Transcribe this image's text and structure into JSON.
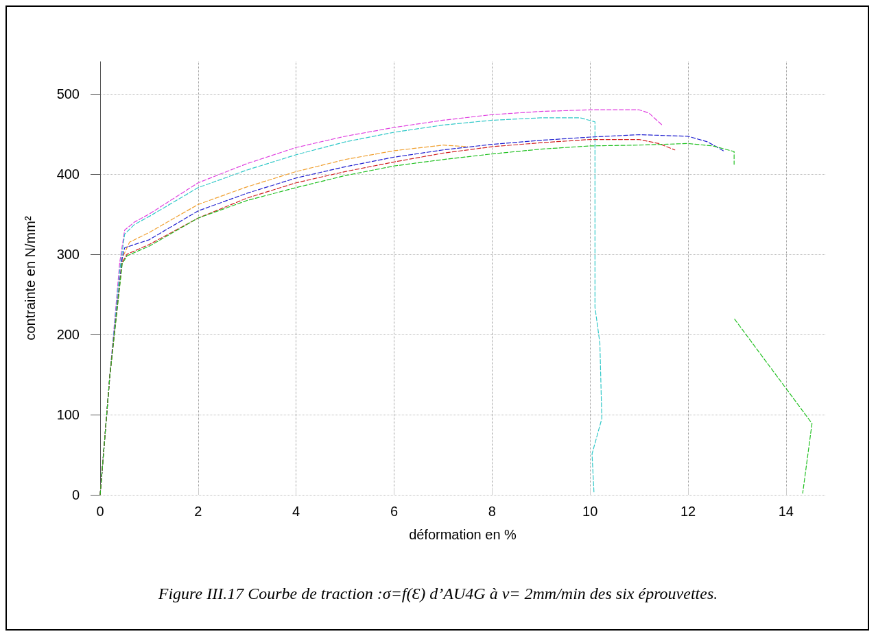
{
  "chart_data": {
    "type": "line",
    "title": "Figure III.17 Courbe de traction :σ=f(Ɛ) d’AU4G à ν= 2mm/min des six éprouvettes.",
    "xlabel": "déformation en %",
    "ylabel": "contrainte en N/mm²",
    "xlim": [
      0,
      14.8
    ],
    "xticks": [
      0,
      2,
      4,
      6,
      8,
      10,
      12,
      14
    ],
    "ylim": [
      0,
      540
    ],
    "yticks": [
      0,
      100,
      200,
      300,
      400,
      500
    ],
    "grid": true,
    "marker": "none",
    "line_style": "dashed",
    "series": [
      {
        "color": "#e040e0",
        "x": [
          0,
          0.2,
          0.4,
          0.5,
          0.7,
          1,
          2,
          3,
          4,
          5,
          6,
          7,
          8,
          9,
          10,
          11,
          11.2,
          11.47
        ],
        "values": [
          0,
          150,
          290,
          330,
          340,
          350,
          389,
          413,
          433,
          447,
          458,
          467,
          474,
          478,
          480,
          480,
          476,
          461
        ]
      },
      {
        "color": "#30c8c8",
        "x": [
          0,
          0.2,
          0.4,
          0.5,
          0.7,
          1,
          2,
          3,
          4,
          5,
          6,
          7,
          8,
          9,
          9.8,
          10.1,
          10.1,
          10.2,
          10.24,
          10.04,
          10.08
        ],
        "values": [
          0,
          150,
          280,
          325,
          337,
          347,
          383,
          405,
          424,
          440,
          452,
          461,
          467,
          470,
          470,
          465,
          234,
          189,
          95,
          51,
          2
        ]
      },
      {
        "color": "#f0a030",
        "x": [
          0,
          0.2,
          0.45,
          0.6,
          1,
          2,
          3,
          4,
          5,
          6,
          7,
          7.5
        ],
        "values": [
          0,
          150,
          295,
          315,
          327,
          362,
          384,
          403,
          418,
          429,
          436,
          434
        ]
      },
      {
        "color": "#2020d0",
        "x": [
          0,
          0.2,
          0.45,
          0.5,
          1,
          2,
          3,
          4,
          5,
          6,
          7,
          8,
          9,
          10,
          11,
          12,
          12.4,
          12.72
        ],
        "values": [
          0,
          150,
          295,
          308,
          318,
          354,
          376,
          395,
          409,
          421,
          430,
          437,
          442,
          446,
          449,
          447,
          440,
          429
        ]
      },
      {
        "color": "#d02020",
        "x": [
          0,
          0.2,
          0.45,
          0.55,
          1,
          2,
          3,
          4,
          5,
          6,
          7,
          8,
          9,
          10,
          11,
          11.4,
          11.73
        ],
        "values": [
          0,
          150,
          290,
          300,
          312,
          345,
          370,
          389,
          403,
          415,
          426,
          434,
          439,
          443,
          443,
          438,
          430
        ]
      },
      {
        "color": "#20c020",
        "x": [
          0,
          0.2,
          0.45,
          0.55,
          1,
          2,
          3,
          4,
          5,
          6,
          7,
          8,
          9,
          10,
          11,
          12,
          12.5,
          12.94,
          12.94,
          null,
          12.95,
          14.53,
          14.34
        ],
        "values": [
          0,
          150,
          288,
          298,
          310,
          345,
          367,
          383,
          398,
          410,
          418,
          425,
          431,
          435,
          436,
          438,
          435,
          428,
          412,
          null,
          219,
          89,
          2
        ]
      }
    ]
  }
}
